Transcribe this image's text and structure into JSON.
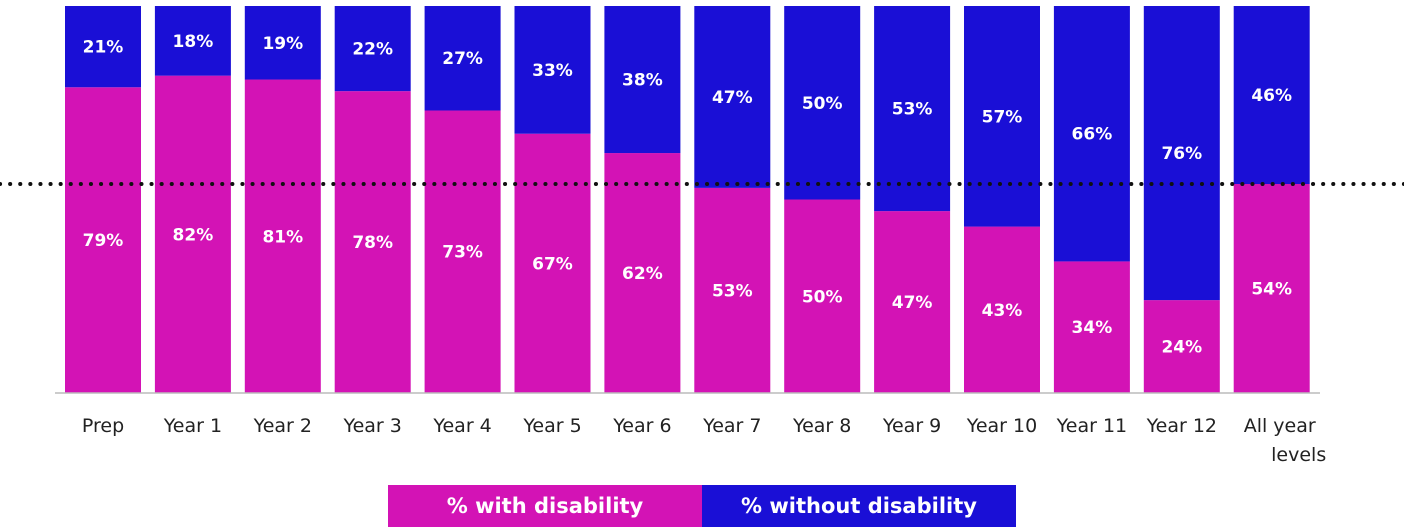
{
  "chart_data": {
    "type": "bar",
    "stacked": true,
    "normalized": true,
    "categories": [
      "Prep",
      "Year 1",
      "Year 2",
      "Year 3",
      "Year 4",
      "Year 5",
      "Year 6",
      "Year 7",
      "Year 8",
      "Year 9",
      "Year 10",
      "Year 11",
      "Year 12",
      "All year levels"
    ],
    "series": [
      {
        "name": "% with disability",
        "values": [
          79,
          82,
          81,
          78,
          73,
          67,
          62,
          53,
          50,
          47,
          43,
          34,
          24,
          54
        ],
        "color": "#d313b5"
      },
      {
        "name": "% without disability",
        "values": [
          21,
          18,
          19,
          22,
          27,
          33,
          38,
          47,
          50,
          53,
          57,
          66,
          76,
          46
        ],
        "color": "#1a0fd6"
      }
    ],
    "labels": {
      "with": [
        "79%",
        "82%",
        "81%",
        "78%",
        "73%",
        "67%",
        "62%",
        "53%",
        "50%",
        "47%",
        "43%",
        "34%",
        "24%",
        "54%"
      ],
      "without": [
        "21%",
        "18%",
        "19%",
        "22%",
        "27%",
        "33%",
        "38%",
        "47%",
        "50%",
        "53%",
        "57%",
        "66%",
        "76%",
        "46%"
      ]
    },
    "reference_line": {
      "value": 54,
      "style": "dotted",
      "color": "#111111"
    },
    "ylim": [
      0,
      100
    ],
    "legend_position": "bottom",
    "grid": false
  },
  "legend": {
    "with_label": "% with disability",
    "without_label": "% without disability"
  }
}
